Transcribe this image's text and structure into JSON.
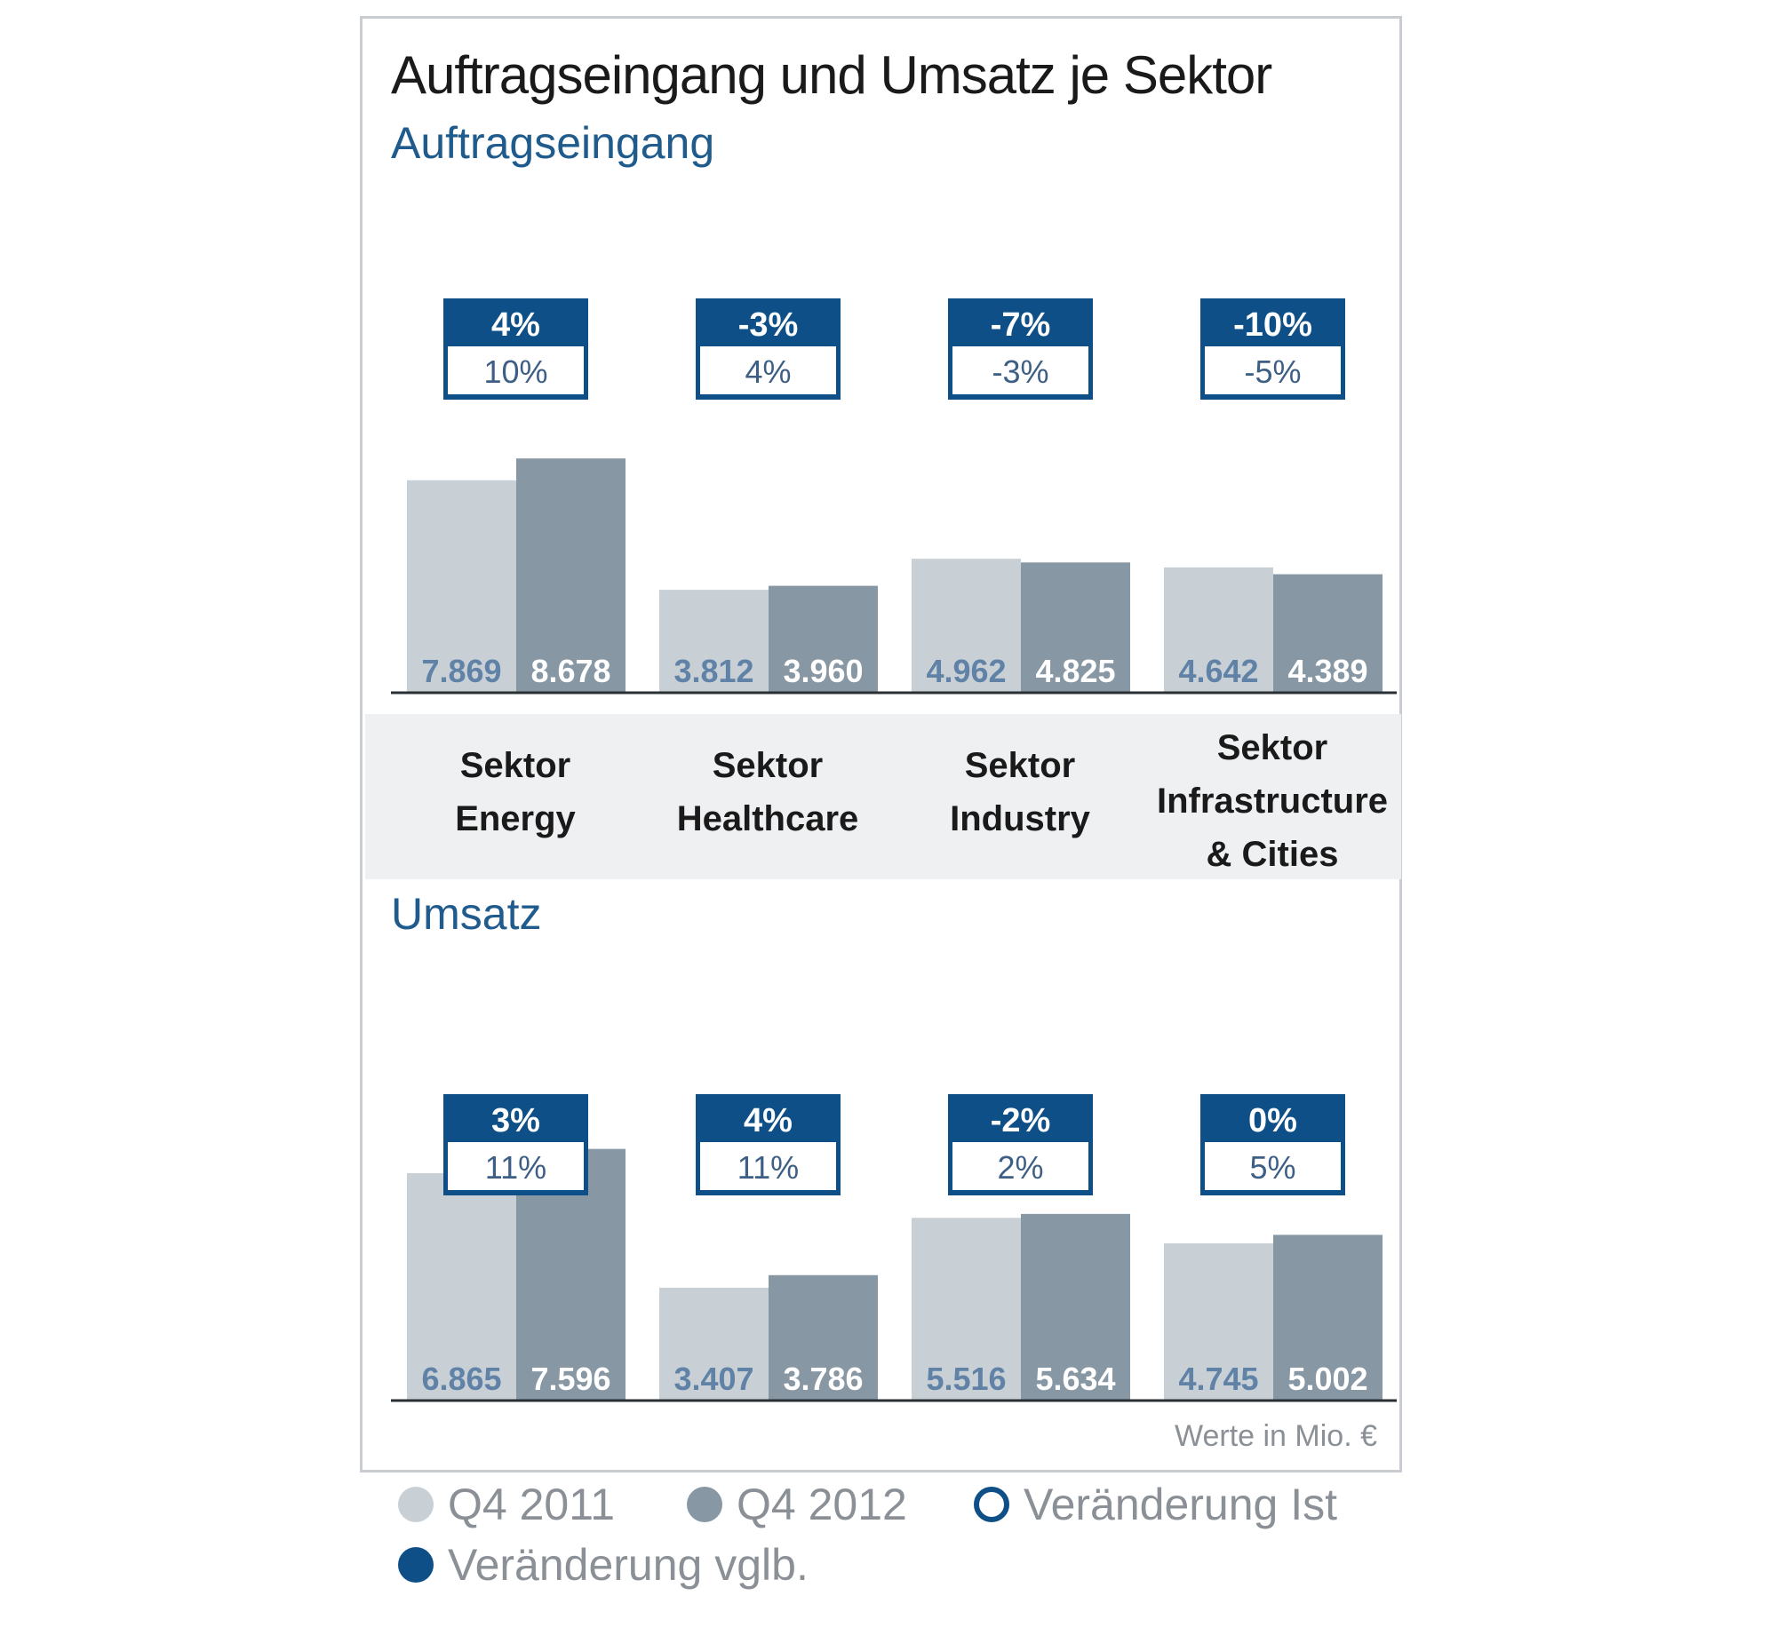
{
  "title": "Auftragseingang und Umsatz je Sektor",
  "footnote": "Werte in Mio. €",
  "colors": {
    "q4_2011": "#c8d0d6",
    "q4_2012": "#8797a4",
    "box_blue": "#0d4f86",
    "axis": "#2a2f33"
  },
  "categories": [
    "Sektor Energy",
    "Sektor Healthcare",
    "Sektor Industry",
    "Sektor Infrastructure & Cities"
  ],
  "category_lines": [
    [
      "Sektor",
      "Energy"
    ],
    [
      "Sektor",
      "Healthcare"
    ],
    [
      "Sektor",
      "Industry"
    ],
    [
      "Sektor",
      "Infrastructure",
      "& Cities"
    ]
  ],
  "legend": [
    {
      "label": "Q4 2011",
      "style": "filled-light"
    },
    {
      "label": "Q4 2012",
      "style": "filled-dark"
    },
    {
      "label": "Veränderung Ist",
      "style": "outline-blue"
    },
    {
      "label": "Veränderung vglb.",
      "style": "filled-blue"
    }
  ],
  "chart_data": [
    {
      "type": "bar",
      "title": "Auftragseingang",
      "categories": [
        "Sektor Energy",
        "Sektor Healthcare",
        "Sektor Industry",
        "Sektor Infrastructure & Cities"
      ],
      "series": [
        {
          "name": "Q4 2011",
          "values": [
            7869,
            3812,
            4962,
            4642
          ],
          "labels": [
            "7.869",
            "3.812",
            "4.962",
            "4.642"
          ]
        },
        {
          "name": "Q4 2012",
          "values": [
            8678,
            3960,
            4825,
            4389
          ],
          "labels": [
            "8.678",
            "3.960",
            "4.825",
            "4.389"
          ]
        }
      ],
      "veraenderung_vglb": [
        "4%",
        "-3%",
        "-7%",
        "-10%"
      ],
      "veraenderung_ist": [
        "10%",
        "4%",
        "-3%",
        "-5%"
      ]
    },
    {
      "type": "bar",
      "title": "Umsatz",
      "categories": [
        "Sektor Energy",
        "Sektor Healthcare",
        "Sektor Industry",
        "Sektor Infrastructure & Cities"
      ],
      "series": [
        {
          "name": "Q4 2011",
          "values": [
            6865,
            3407,
            5516,
            4745
          ],
          "labels": [
            "6.865",
            "3.407",
            "5.516",
            "4.745"
          ]
        },
        {
          "name": "Q4 2012",
          "values": [
            7596,
            3786,
            5634,
            5002
          ],
          "labels": [
            "7.596",
            "3.786",
            "5.634",
            "5.002"
          ]
        }
      ],
      "veraenderung_vglb": [
        "3%",
        "4%",
        "-2%",
        "0%"
      ],
      "veraenderung_ist": [
        "11%",
        "11%",
        "2%",
        "5%"
      ]
    }
  ]
}
